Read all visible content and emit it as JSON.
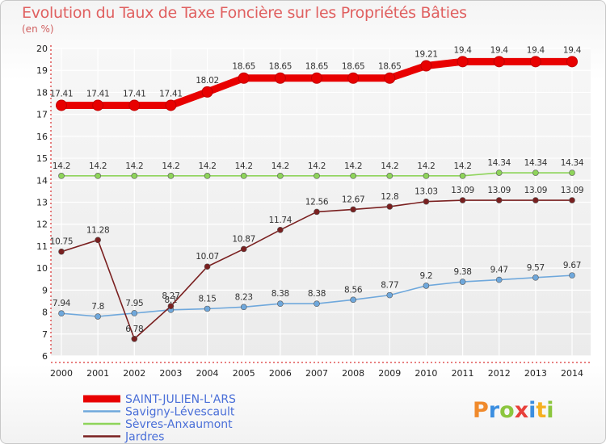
{
  "title": "Evolution du Taux de Taxe Foncière sur les Propriétés Bâties",
  "unit_label": "(en %)",
  "brand": {
    "letters": [
      "P",
      "r",
      "o",
      "x",
      "i",
      "t",
      "i"
    ],
    "colors": [
      "#f08a2c",
      "#3b8ee0",
      "#8cc63e",
      "#e8403a",
      "#3b8ee0",
      "#f5b021",
      "#8cc63e"
    ]
  },
  "chart_data": {
    "type": "line",
    "title": "Evolution du Taux de Taxe Foncière sur les Propriétés Bâties",
    "ylabel": "(en %)",
    "xlabel": "",
    "ylim": [
      6,
      20
    ],
    "yticks": [
      6,
      7,
      8,
      9,
      10,
      11,
      12,
      13,
      14,
      15,
      16,
      17,
      18,
      19,
      20
    ],
    "grid": true,
    "categories": [
      "2000",
      "2001",
      "2002",
      "2003",
      "2004",
      "2005",
      "2006",
      "2007",
      "2008",
      "2009",
      "2010",
      "2011",
      "2012",
      "2013",
      "2014"
    ],
    "series": [
      {
        "name": "SAINT-JULIEN-L'ARS",
        "color": "#e80000",
        "emphasis": true,
        "values": [
          17.41,
          17.41,
          17.41,
          17.41,
          18.02,
          18.65,
          18.65,
          18.65,
          18.65,
          18.65,
          19.21,
          19.4,
          19.4,
          19.4,
          19.4
        ],
        "labels": [
          "17.41",
          "17.41",
          "17.41",
          "17.41",
          "18.02",
          "18.65",
          "18.65",
          "18.65",
          "18.65",
          "18.65",
          "19.21",
          "19.4",
          "19.4",
          "19.4",
          "19.4"
        ]
      },
      {
        "name": "Savigny-Lévescault",
        "color": "#6fa8dc",
        "values": [
          7.94,
          7.8,
          7.95,
          8.1,
          8.15,
          8.23,
          8.38,
          8.38,
          8.56,
          8.77,
          9.2,
          9.38,
          9.47,
          9.57,
          9.67
        ],
        "labels": [
          "7.94",
          "7.8",
          "7.95",
          "8.1",
          "8.15",
          "8.23",
          "8.38",
          "8.38",
          "8.56",
          "8.77",
          "9.2",
          "9.38",
          "9.47",
          "9.57",
          "9.67"
        ]
      },
      {
        "name": "Sèvres-Anxaumont",
        "color": "#8ed45a",
        "values": [
          14.2,
          14.2,
          14.2,
          14.2,
          14.2,
          14.2,
          14.2,
          14.2,
          14.2,
          14.2,
          14.2,
          14.2,
          14.34,
          14.34,
          14.34
        ],
        "labels": [
          "14.2",
          "14.2",
          "14.2",
          "14.2",
          "14.2",
          "14.2",
          "14.2",
          "14.2",
          "14.2",
          "14.2",
          "14.2",
          "14.2",
          "14.34",
          "14.34",
          "14.34"
        ]
      },
      {
        "name": "Jardres",
        "color": "#7a2020",
        "values": [
          10.75,
          11.28,
          6.78,
          8.27,
          10.07,
          10.87,
          11.74,
          12.56,
          12.67,
          12.8,
          13.03,
          13.09,
          13.09,
          13.09,
          13.09
        ],
        "labels": [
          "10.75",
          "11.28",
          "6.78",
          "8.27",
          "10.07",
          "10.87",
          "11.74",
          "12.56",
          "12.67",
          "12.8",
          "13.03",
          "13.09",
          "13.09",
          "13.09",
          "13.09"
        ]
      }
    ]
  }
}
